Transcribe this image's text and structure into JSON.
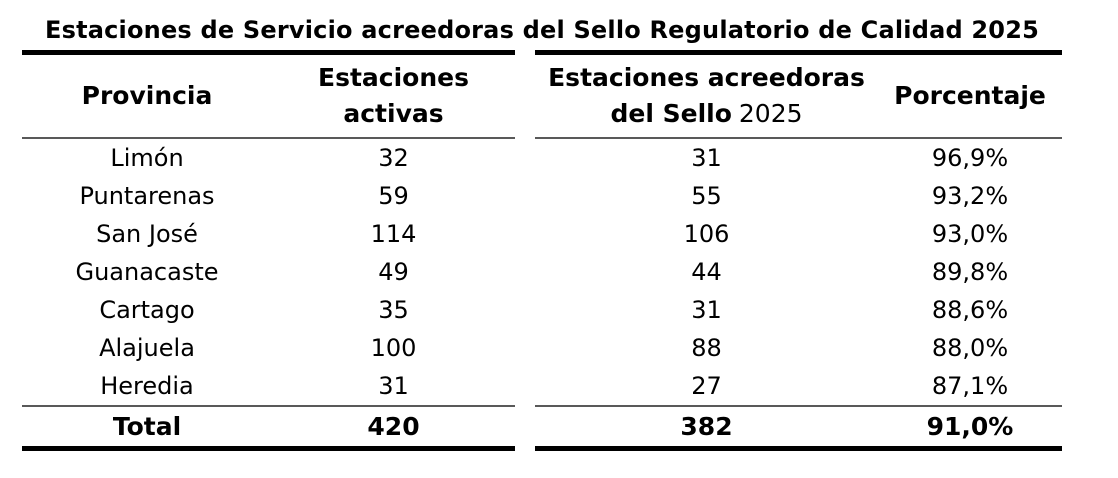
{
  "chart_data": {
    "type": "table",
    "title": "Estaciones de Servicio acreedoras del Sello Regulatorio de Calidad 2025",
    "columns": [
      "Provincia",
      "Estaciones activas",
      "Estaciones acreedoras del Sello 2025",
      "Porcentaje"
    ],
    "rows": [
      {
        "provincia": "Limón",
        "activas": "32",
        "acreedoras": "31",
        "porcentaje": "96,9%"
      },
      {
        "provincia": "Puntarenas",
        "activas": "59",
        "acreedoras": "55",
        "porcentaje": "93,2%"
      },
      {
        "provincia": "San José",
        "activas": "114",
        "acreedoras": "106",
        "porcentaje": "93,0%"
      },
      {
        "provincia": "Guanacaste",
        "activas": "49",
        "acreedoras": "44",
        "porcentaje": "89,8%"
      },
      {
        "provincia": "Cartago",
        "activas": "35",
        "acreedoras": "31",
        "porcentaje": "88,6%"
      },
      {
        "provincia": "Alajuela",
        "activas": "100",
        "acreedoras": "88",
        "porcentaje": "88,0%"
      },
      {
        "provincia": "Heredia",
        "activas": "31",
        "acreedoras": "27",
        "porcentaje": "87,1%"
      }
    ],
    "total": {
      "provincia": "Total",
      "activas": "420",
      "acreedoras": "382",
      "porcentaje": "91,0%"
    }
  },
  "header": {
    "provincia": "Provincia",
    "activas_line1": "Estaciones",
    "activas_line2": "activas",
    "acreedoras_line1": "Estaciones acreedoras",
    "acreedoras_line2_bold": "del Sello",
    "acreedoras_line2_regular": "2025",
    "porcentaje": "Porcentaje"
  },
  "colors": {
    "background": "#ffffff",
    "text": "#000000",
    "rule_thick": "#000000",
    "rule_thin": "#595959"
  }
}
